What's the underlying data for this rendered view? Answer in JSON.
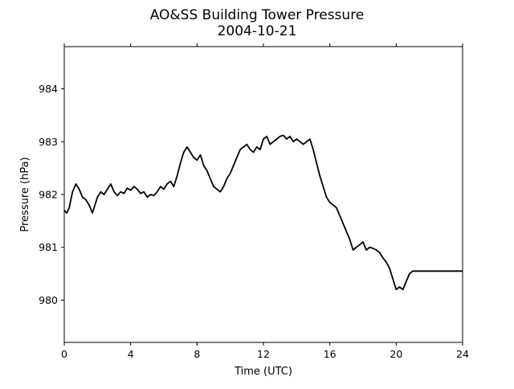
{
  "chart_data": {
    "type": "line",
    "title": "AO&SS Building Tower Pressure",
    "subtitle": "2004-10-21",
    "xlabel": "Time (UTC)",
    "ylabel": "Pressure (hPa)",
    "xlim": [
      0,
      24
    ],
    "ylim": [
      979.2,
      984.8
    ],
    "xticks": [
      0,
      4,
      8,
      12,
      16,
      20,
      24
    ],
    "yticks": [
      980,
      981,
      982,
      983,
      984
    ],
    "grid": false,
    "line_color": "#000000",
    "series": [
      {
        "x": [
          0,
          0.15,
          0.3,
          0.5,
          0.7,
          0.9,
          1.1,
          1.3,
          1.5,
          1.7,
          1.8,
          2.0,
          2.2,
          2.4,
          2.6,
          2.8,
          3.0,
          3.2,
          3.4,
          3.6,
          3.8,
          4.0,
          4.2,
          4.4,
          4.6,
          4.8,
          5.0,
          5.2,
          5.4,
          5.6,
          5.8,
          6.0,
          6.2,
          6.4,
          6.6,
          6.8,
          7.0,
          7.2,
          7.4,
          7.6,
          7.8,
          8.0,
          8.2,
          8.4,
          8.6,
          8.8,
          9.0,
          9.2,
          9.4,
          9.6,
          9.8,
          10.0,
          10.2,
          10.4,
          10.6,
          10.8,
          11.0,
          11.2,
          11.4,
          11.6,
          11.8,
          12.0,
          12.2,
          12.4,
          12.6,
          12.8,
          13.0,
          13.2,
          13.4,
          13.6,
          13.8,
          14.0,
          14.2,
          14.4,
          14.6,
          14.8,
          15.0,
          15.2,
          15.4,
          15.6,
          15.8,
          16.0,
          16.2,
          16.4,
          16.6,
          16.8,
          17.0,
          17.2,
          17.4,
          17.6,
          17.8,
          18.0,
          18.2,
          18.4,
          18.6,
          18.8,
          19.0,
          19.2,
          19.4,
          19.6,
          19.8,
          20.0,
          20.2,
          20.4,
          20.6,
          20.8,
          21.0,
          21.2,
          21.4,
          21.6,
          21.8,
          22.0,
          22.2,
          22.4,
          22.6,
          22.8,
          23.0,
          23.2,
          23.4,
          23.6,
          23.8,
          24.0
        ],
        "y": [
          981.7,
          981.65,
          981.75,
          982.05,
          982.2,
          982.1,
          981.95,
          981.9,
          981.8,
          981.65,
          981.75,
          981.95,
          982.05,
          982.0,
          982.1,
          982.2,
          982.05,
          981.98,
          982.05,
          982.02,
          982.12,
          982.08,
          982.15,
          982.1,
          982.02,
          982.05,
          981.95,
          982.0,
          981.98,
          982.05,
          982.15,
          982.1,
          982.2,
          982.25,
          982.15,
          982.35,
          982.6,
          982.8,
          982.9,
          982.8,
          982.7,
          982.65,
          982.75,
          982.55,
          982.45,
          982.3,
          982.15,
          982.1,
          982.05,
          982.15,
          982.3,
          982.4,
          982.55,
          982.7,
          982.85,
          982.9,
          982.95,
          982.85,
          982.8,
          982.9,
          982.85,
          983.05,
          983.1,
          982.95,
          983.0,
          983.05,
          983.1,
          983.12,
          983.05,
          983.1,
          983.0,
          983.05,
          983.0,
          982.95,
          983.0,
          983.05,
          982.85,
          982.6,
          982.35,
          982.15,
          981.95,
          981.85,
          981.8,
          981.75,
          981.6,
          981.45,
          981.3,
          981.15,
          980.95,
          981.0,
          981.05,
          981.1,
          980.95,
          981.0,
          980.98,
          980.95,
          980.9,
          980.8,
          980.72,
          980.6,
          980.4,
          980.2,
          980.25,
          980.2,
          980.35,
          980.5,
          980.55,
          980.55,
          980.55,
          980.55,
          980.55,
          980.55,
          980.55,
          980.55,
          980.55,
          980.55,
          980.55,
          980.55,
          980.55,
          980.55,
          980.55,
          980.55
        ]
      }
    ]
  }
}
